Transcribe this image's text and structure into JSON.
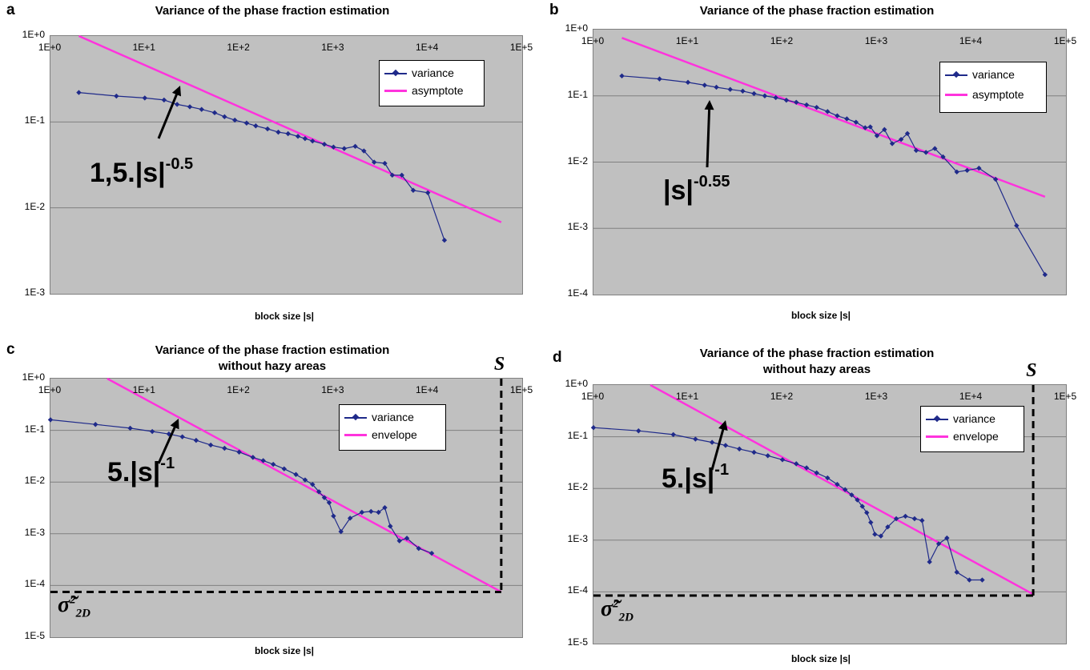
{
  "panels": [
    {
      "letter": "a",
      "title_lines": [
        "Variance of the phase fraction estimation"
      ],
      "xlabel": "block size |s|",
      "y_tick_labels": [
        "1E+0",
        "1E-1",
        "1E-2",
        "1E-3"
      ],
      "x_tick_labels": [
        "1E+0",
        "1E+1",
        "1E+2",
        "1E+3",
        "1E+4",
        "1E+5"
      ],
      "legend": [
        "variance",
        "asymptote"
      ],
      "annotation": {
        "text": "1,5.|s|",
        "exp": "-0.5"
      }
    },
    {
      "letter": "b",
      "title_lines": [
        "Variance of the phase fraction estimation"
      ],
      "xlabel": "block size |s|",
      "y_tick_labels": [
        "1E+0",
        "1E-1",
        "1E-2",
        "1E-3",
        "1E-4"
      ],
      "x_tick_labels": [
        "1E+0",
        "1E+1",
        "1E+2",
        "1E+3",
        "1E+4",
        "1E+5"
      ],
      "legend": [
        "variance",
        "asymptote"
      ],
      "annotation": {
        "text": "|s|",
        "exp": "-0.55"
      }
    },
    {
      "letter": "c",
      "title_lines": [
        "Variance of the phase fraction estimation",
        "without hazy areas"
      ],
      "xlabel": "block size |s|",
      "y_tick_labels": [
        "1E+0",
        "1E-1",
        "1E-2",
        "1E-3",
        "1E-4",
        "1E-5"
      ],
      "x_tick_labels": [
        "1E+0",
        "1E+1",
        "1E+2",
        "1E+3",
        "1E+4",
        "1E+5"
      ],
      "legend": [
        "variance",
        "envelope"
      ],
      "annotation": {
        "text": "5.|s|",
        "exp": "-1"
      },
      "s_label": "S",
      "sigma_label": {
        "base": "σ̃",
        "sup": "2",
        "sub": "2D"
      }
    },
    {
      "letter": "d",
      "title_lines": [
        "Variance of the phase fraction estimation",
        "without hazy areas"
      ],
      "xlabel": "block size |s|",
      "y_tick_labels": [
        "1E+0",
        "1E-1",
        "1E-2",
        "1E-3",
        "1E-4",
        "1E-5"
      ],
      "x_tick_labels": [
        "1E+0",
        "1E+1",
        "1E+2",
        "1E+3",
        "1E+4",
        "1E+5"
      ],
      "legend": [
        "variance",
        "envelope"
      ],
      "annotation": {
        "text": "5.|s|",
        "exp": "-1"
      },
      "s_label": "S",
      "sigma_label": {
        "base": "σ̃",
        "sup": "2",
        "sub": "2D"
      }
    }
  ],
  "colors": {
    "variance": "#1f2a8a",
    "fit": "#ff33dd",
    "plot_bg": "#c0c0c0",
    "grid": "#808080"
  },
  "chart_data": [
    {
      "type": "line",
      "title": "Variance of the phase fraction estimation",
      "xlabel": "block size |s|",
      "ylabel": "",
      "x_scale": "log",
      "y_scale": "log",
      "xlim": [
        1,
        100000
      ],
      "ylim": [
        0.001,
        1
      ],
      "series": [
        {
          "name": "variance",
          "x": [
            2,
            5,
            10,
            16,
            22,
            30,
            40,
            55,
            70,
            90,
            120,
            150,
            200,
            260,
            330,
            420,
            500,
            600,
            800,
            1000,
            1300,
            1700,
            2100,
            2700,
            3500,
            4200,
            5300,
            7000,
            10000,
            15000
          ],
          "y": [
            0.22,
            0.2,
            0.19,
            0.18,
            0.16,
            0.15,
            0.14,
            0.128,
            0.115,
            0.105,
            0.097,
            0.09,
            0.083,
            0.076,
            0.073,
            0.068,
            0.064,
            0.06,
            0.055,
            0.051,
            0.049,
            0.052,
            0.046,
            0.034,
            0.033,
            0.024,
            0.024,
            0.016,
            0.015,
            0.0042
          ]
        },
        {
          "name": "asymptote",
          "x": [
            2,
            60000
          ],
          "y": [
            1.0,
            0.0068
          ]
        }
      ]
    },
    {
      "type": "line",
      "title": "Variance of the phase fraction estimation",
      "xlabel": "block size |s|",
      "ylabel": "",
      "x_scale": "log",
      "y_scale": "log",
      "xlim": [
        1,
        100000
      ],
      "ylim": [
        0.0001,
        1
      ],
      "series": [
        {
          "name": "variance",
          "x": [
            2,
            5,
            10,
            15,
            20,
            28,
            38,
            50,
            65,
            85,
            110,
            140,
            180,
            230,
            300,
            380,
            480,
            600,
            750,
            850,
            1000,
            1200,
            1450,
            1800,
            2100,
            2600,
            3300,
            4100,
            5000,
            7000,
            9000,
            12000,
            18000,
            30000,
            60000
          ],
          "y": [
            0.2,
            0.18,
            0.16,
            0.145,
            0.135,
            0.125,
            0.118,
            0.108,
            0.1,
            0.094,
            0.086,
            0.08,
            0.073,
            0.067,
            0.058,
            0.05,
            0.045,
            0.04,
            0.033,
            0.034,
            0.025,
            0.031,
            0.019,
            0.022,
            0.027,
            0.015,
            0.014,
            0.016,
            0.012,
            0.0071,
            0.0075,
            0.0081,
            0.0055,
            0.0011,
            0.0002
          ]
        },
        {
          "name": "asymptote",
          "x": [
            2,
            60000
          ],
          "y": [
            0.75,
            0.003
          ]
        }
      ]
    },
    {
      "type": "line",
      "title": "Variance of the phase fraction estimation without hazy areas",
      "xlabel": "block size |s|",
      "ylabel": "",
      "x_scale": "log",
      "y_scale": "log",
      "xlim": [
        1,
        100000
      ],
      "ylim": [
        1e-05,
        1
      ],
      "series": [
        {
          "name": "variance",
          "x": [
            1,
            3,
            7,
            12,
            18,
            25,
            35,
            50,
            70,
            100,
            140,
            180,
            230,
            300,
            400,
            500,
            600,
            700,
            800,
            900,
            1000,
            1200,
            1500,
            2000,
            2500,
            3000,
            3500,
            4000,
            5000,
            6000,
            8000,
            11000
          ],
          "y": [
            0.16,
            0.13,
            0.11,
            0.095,
            0.085,
            0.075,
            0.064,
            0.052,
            0.045,
            0.038,
            0.03,
            0.026,
            0.022,
            0.018,
            0.014,
            0.011,
            0.009,
            0.0065,
            0.005,
            0.004,
            0.0022,
            0.0011,
            0.002,
            0.0026,
            0.0027,
            0.0026,
            0.0032,
            0.0014,
            0.00073,
            0.00082,
            0.00052,
            0.00042
          ]
        },
        {
          "name": "envelope",
          "x": [
            4,
            60000
          ],
          "y": [
            1.0,
            7.5e-05
          ]
        }
      ],
      "annotations": [
        "S = 60000",
        "σ̃²2D = 0.000075"
      ]
    },
    {
      "type": "line",
      "title": "Variance of the phase fraction estimation without hazy areas",
      "xlabel": "block size |s|",
      "ylabel": "",
      "x_scale": "log",
      "y_scale": "log",
      "xlim": [
        1,
        100000
      ],
      "ylim": [
        1e-05,
        1
      ],
      "series": [
        {
          "name": "variance",
          "x": [
            1,
            3,
            7,
            12,
            18,
            25,
            35,
            50,
            70,
            100,
            140,
            180,
            230,
            300,
            380,
            460,
            540,
            620,
            700,
            780,
            860,
            950,
            1100,
            1300,
            1600,
            2000,
            2500,
            3000,
            3600,
            4500,
            5500,
            7000,
            9500,
            13000
          ],
          "y": [
            0.15,
            0.13,
            0.11,
            0.09,
            0.078,
            0.068,
            0.058,
            0.05,
            0.043,
            0.036,
            0.03,
            0.025,
            0.02,
            0.016,
            0.012,
            0.0095,
            0.0075,
            0.006,
            0.0045,
            0.0034,
            0.0022,
            0.0013,
            0.0012,
            0.0018,
            0.0026,
            0.0029,
            0.0026,
            0.0024,
            0.00038,
            0.00085,
            0.0011,
            0.00024,
            0.00017,
            0.00017
          ]
        },
        {
          "name": "envelope",
          "x": [
            4,
            45000
          ],
          "y": [
            1.0,
            9e-05
          ]
        }
      ],
      "annotations": [
        "S = 45000",
        "σ̃²2D = 0.000085"
      ]
    }
  ]
}
